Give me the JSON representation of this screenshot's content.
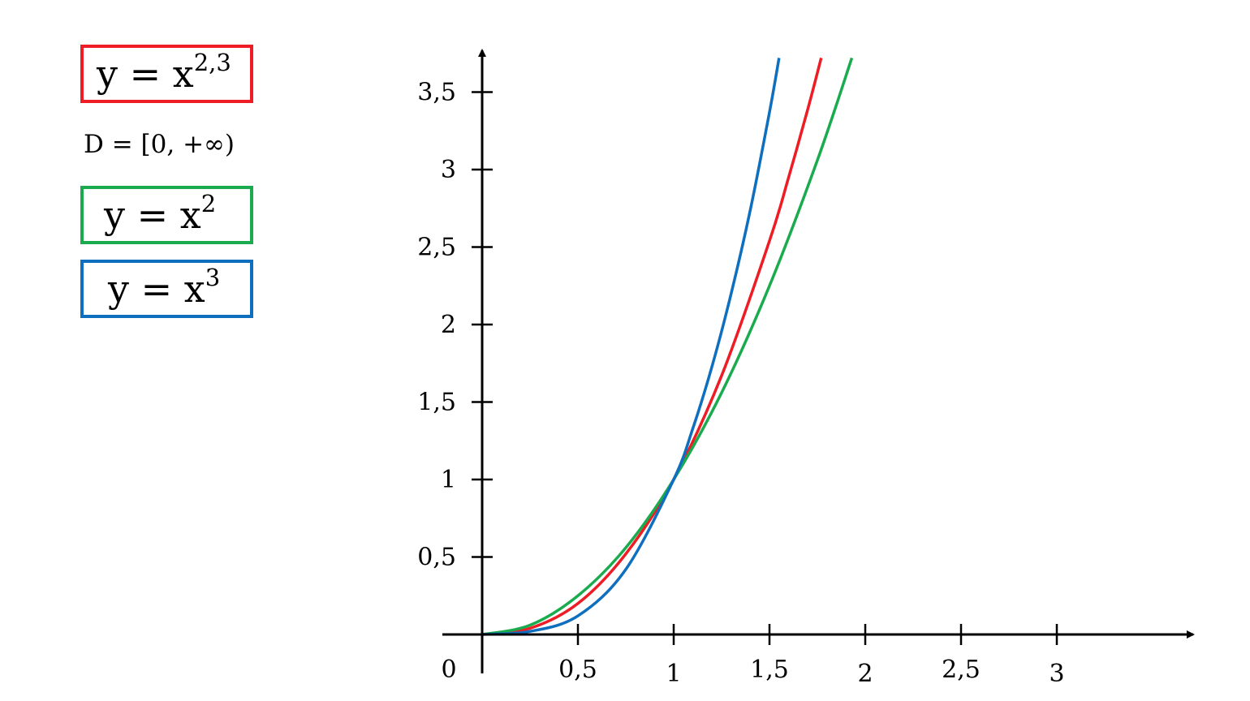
{
  "legend": [
    {
      "id": "red",
      "base": "y = x",
      "exponent": "2,3",
      "color": "#ee1c25"
    },
    {
      "id": "green",
      "base": "y = x",
      "exponent": "2",
      "color": "#1aab4e"
    },
    {
      "id": "blue",
      "base": "y = x",
      "exponent": "3",
      "color": "#0f6fbf"
    }
  ],
  "domain_text": "D = [0, +∞)",
  "chart_data": {
    "type": "line",
    "title": "",
    "xlabel": "",
    "ylabel": "",
    "origin_label": "0",
    "xlim": [
      0,
      3.6
    ],
    "ylim": [
      0,
      3.7
    ],
    "x_ticks": [
      {
        "value": 0.5,
        "label": "0,5"
      },
      {
        "value": 1,
        "label": "1"
      },
      {
        "value": 1.5,
        "label": "1,5"
      },
      {
        "value": 2,
        "label": "2"
      },
      {
        "value": 2.5,
        "label": "2,5"
      },
      {
        "value": 3,
        "label": "3"
      }
    ],
    "y_ticks": [
      {
        "value": 0.5,
        "label": "0,5"
      },
      {
        "value": 1,
        "label": "1"
      },
      {
        "value": 1.5,
        "label": "1,5"
      },
      {
        "value": 2,
        "label": "2"
      },
      {
        "value": 2.5,
        "label": "2,5"
      },
      {
        "value": 3,
        "label": "3"
      },
      {
        "value": 3.5,
        "label": "3,5"
      }
    ],
    "grid": false,
    "legend_position": "top-left",
    "series": [
      {
        "color": "#ee1c25",
        "x": [
          0,
          0.25,
          0.5,
          0.75,
          1,
          1.25,
          1.5,
          1.6,
          1.7,
          1.77
        ],
        "y": [
          0,
          0.04,
          0.2,
          0.52,
          1,
          1.67,
          2.54,
          2.95,
          3.39,
          3.72
        ]
      },
      {
        "color": "#1aab4e",
        "x": [
          0,
          0.25,
          0.5,
          0.75,
          1,
          1.25,
          1.5,
          1.75,
          1.93
        ],
        "y": [
          0,
          0.06,
          0.25,
          0.56,
          1,
          1.56,
          2.25,
          3.06,
          3.72
        ]
      },
      {
        "color": "#0f6fbf",
        "x": [
          0,
          0.25,
          0.5,
          0.75,
          1,
          1.1,
          1.2,
          1.3,
          1.4,
          1.5,
          1.55
        ],
        "y": [
          0,
          0.02,
          0.12,
          0.42,
          1,
          1.33,
          1.73,
          2.2,
          2.74,
          3.37,
          3.72
        ]
      }
    ]
  }
}
